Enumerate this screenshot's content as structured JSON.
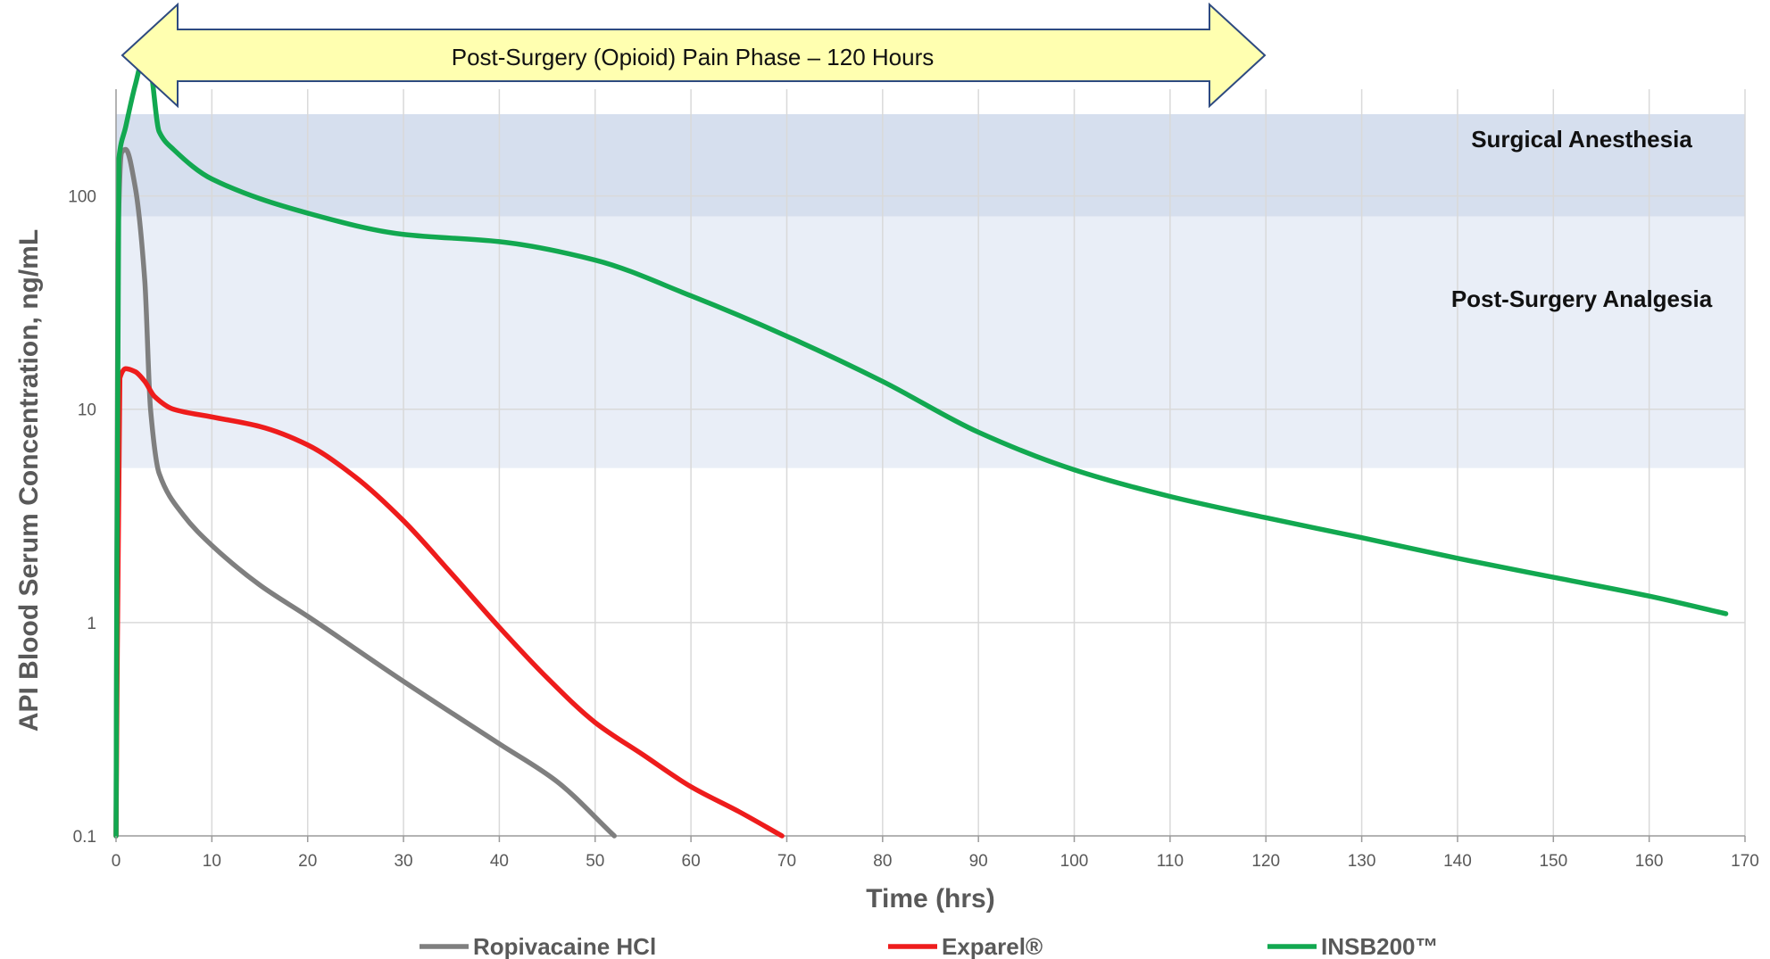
{
  "chart_data": {
    "type": "line",
    "xlabel": "Time (hrs)",
    "ylabel": "API Blood Serum Concentration, ng/mL",
    "xlim": [
      0,
      170
    ],
    "ylim": [
      0.1,
      1000
    ],
    "y_scale": "log",
    "x_ticks": [
      0,
      10,
      20,
      30,
      40,
      50,
      60,
      70,
      80,
      90,
      100,
      110,
      120,
      130,
      140,
      150,
      160,
      170
    ],
    "y_ticks": [
      0.1,
      1,
      10,
      100
    ],
    "y_tick_labels": [
      "0.1",
      "1",
      "10",
      "100"
    ],
    "grid": true,
    "legend_position": "bottom",
    "bands": [
      {
        "label": "Surgical Anesthesia",
        "y_from": 80,
        "y_to": 750,
        "color": "#D6DFEE"
      },
      {
        "label": "Post-Surgery Analgesia",
        "y_from": 5.3,
        "y_to": 80,
        "color": "#E9EEF7"
      }
    ],
    "annotation": {
      "text": "Post-Surgery (Opioid) Pain Phase – 120 Hours",
      "x_from": 0,
      "x_to": 120,
      "fill": "#FFFFB0",
      "stroke": "#2E4A80"
    },
    "series": [
      {
        "name": "Ropivacaine HCl",
        "color": "#7F7F7F",
        "points": [
          [
            0,
            0.1
          ],
          [
            0.2,
            60
          ],
          [
            0.6,
            160
          ],
          [
            1,
            165
          ],
          [
            2,
            110
          ],
          [
            3,
            40
          ],
          [
            3.6,
            10
          ],
          [
            4.5,
            5
          ],
          [
            7,
            3.2
          ],
          [
            10,
            2.3
          ],
          [
            15,
            1.5
          ],
          [
            20,
            1.07
          ],
          [
            30,
            0.53
          ],
          [
            40,
            0.27
          ],
          [
            46,
            0.18
          ],
          [
            52,
            0.1
          ]
        ]
      },
      {
        "name": "Exparel®",
        "color": "#EE1C1C",
        "points": [
          [
            0,
            0.1
          ],
          [
            0.4,
            14
          ],
          [
            1,
            15.5
          ],
          [
            2,
            15
          ],
          [
            3,
            13.5
          ],
          [
            4,
            11.5
          ],
          [
            6,
            10
          ],
          [
            10,
            9.2
          ],
          [
            15,
            8.3
          ],
          [
            20,
            6.8
          ],
          [
            25,
            4.8
          ],
          [
            30,
            3
          ],
          [
            35,
            1.7
          ],
          [
            40,
            0.95
          ],
          [
            45,
            0.55
          ],
          [
            50,
            0.34
          ],
          [
            55,
            0.24
          ],
          [
            60,
            0.17
          ],
          [
            65,
            0.13
          ],
          [
            69.5,
            0.1
          ]
        ]
      },
      {
        "name": "INSB200™",
        "color": "#12A850",
        "points": [
          [
            0,
            0.1
          ],
          [
            0.3,
            150
          ],
          [
            1,
            210
          ],
          [
            2,
            330
          ],
          [
            3,
            460
          ],
          [
            3.5,
            420
          ],
          [
            4.5,
            200
          ],
          [
            6,
            165
          ],
          [
            10,
            120
          ],
          [
            20,
            83
          ],
          [
            30,
            66
          ],
          [
            40,
            61
          ],
          [
            50,
            50
          ],
          [
            60,
            34
          ],
          [
            70,
            22
          ],
          [
            80,
            13.5
          ],
          [
            90,
            7.8
          ],
          [
            100,
            5.2
          ],
          [
            110,
            3.9
          ],
          [
            120,
            3.1
          ],
          [
            130,
            2.5
          ],
          [
            140,
            2.0
          ],
          [
            150,
            1.63
          ],
          [
            160,
            1.33
          ],
          [
            168,
            1.1
          ]
        ]
      }
    ]
  }
}
